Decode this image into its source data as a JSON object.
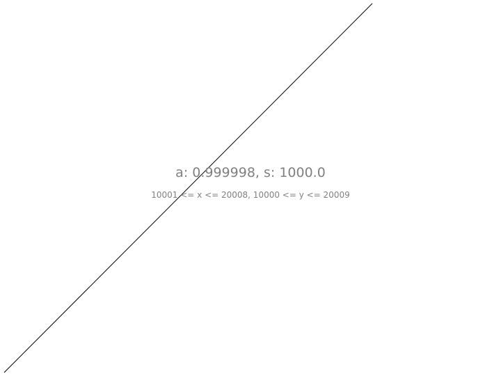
{
  "chart_data": {
    "type": "line",
    "title": "",
    "xlabel": "",
    "ylabel": "",
    "grid": false,
    "axes_visible": false,
    "xlim": [
      10001,
      20008
    ],
    "ylim": [
      10000,
      20009
    ],
    "series": [
      {
        "color": "#000000",
        "x": [
          10001,
          20008
        ],
        "y": [
          10000,
          20009
        ]
      }
    ],
    "annotations": {
      "fit": "a: 0.999998, s: 1000.0",
      "range": "10001 <= x <= 20008, 10000 <= y <= 20009"
    },
    "annotation_color": "#808080"
  }
}
